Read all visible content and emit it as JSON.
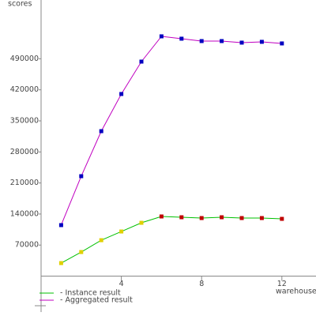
{
  "chart_data": {
    "type": "line",
    "y_label": "scores",
    "x_label": "warehouses",
    "x": [
      1,
      2,
      3,
      4,
      5,
      6,
      7,
      8,
      9,
      10,
      11,
      12
    ],
    "series": [
      {
        "name": "- Instance result",
        "color": "#00c000",
        "marker_colors": [
          "#e0d000",
          "#e0d000",
          "#e0d000",
          "#e0d000",
          "#e0d000",
          "#c00000",
          "#c00000",
          "#c00000",
          "#c00000",
          "#c00000",
          "#c00000",
          "#c00000"
        ],
        "values": [
          29400,
          54300,
          81000,
          100600,
          120200,
          134500,
          132700,
          130900,
          132700,
          130900,
          130900,
          129100
        ]
      },
      {
        "name": "- Aggregated result",
        "color": "#c000c0",
        "marker_colors": [
          "#0000c0",
          "#0000c0",
          "#0000c0",
          "#0000c0",
          "#0000c0",
          "#0000c0",
          "#0000c0",
          "#0000c0",
          "#0000c0",
          "#0000c0",
          "#0000c0",
          "#0000c0"
        ],
        "values": [
          115000,
          225300,
          326800,
          410600,
          483600,
          540600,
          535300,
          529900,
          529900,
          526400,
          528200,
          524600
        ]
      }
    ],
    "xlim": [
      0,
      13.7
    ],
    "xticks": [
      4,
      8,
      12
    ],
    "ylim": [
      -81000,
      622500
    ],
    "yticks": [
      70000,
      140000,
      210000,
      280000,
      350000,
      420000,
      490000
    ]
  }
}
